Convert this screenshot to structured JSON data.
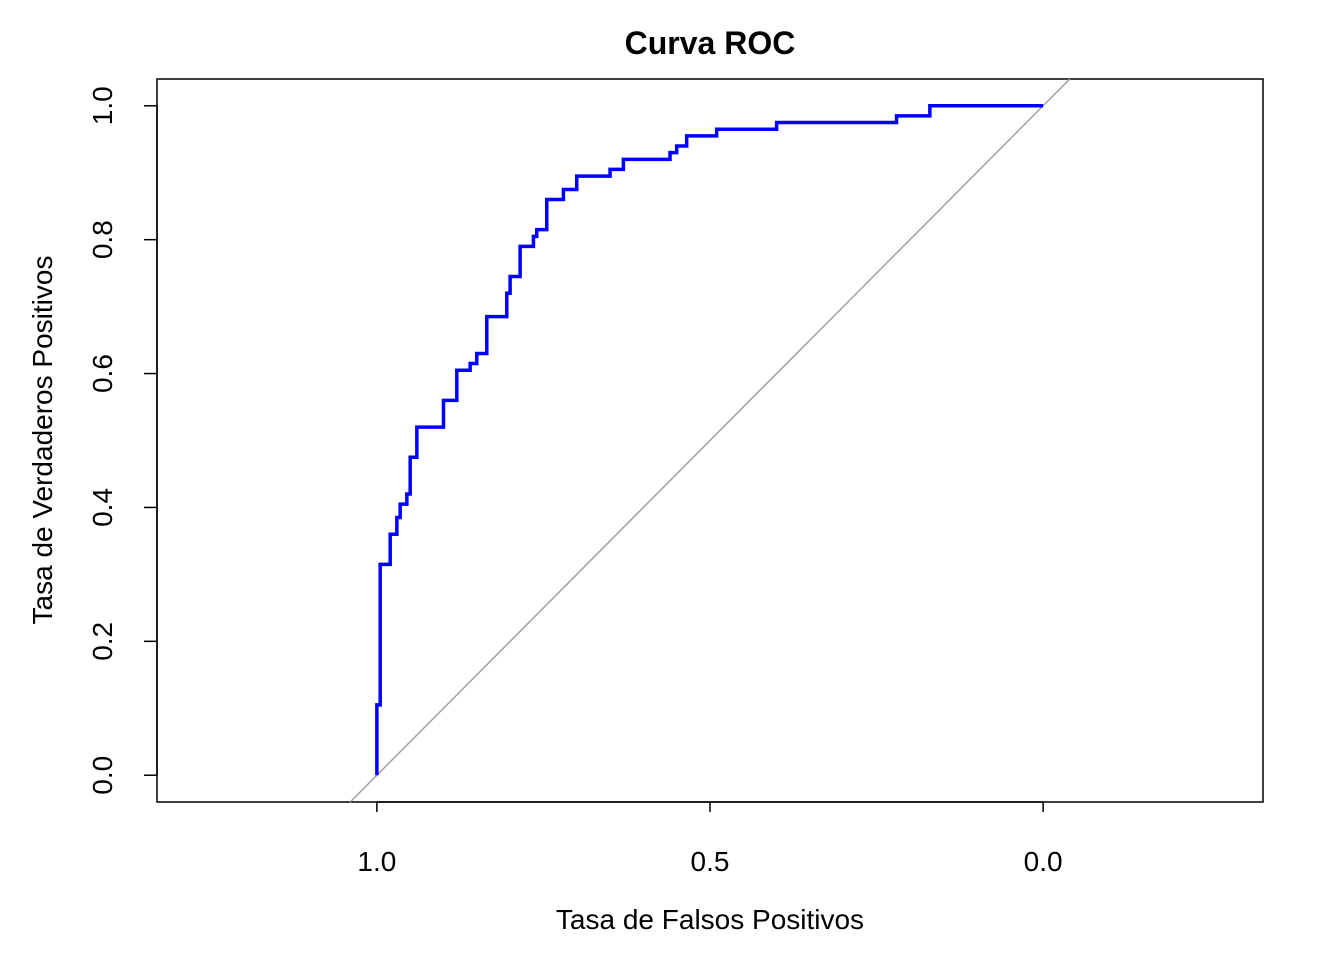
{
  "chart_data": {
    "type": "line",
    "title": "Curva ROC",
    "xlabel": "Tasa de Falsos Positivos",
    "ylabel": "Tasa de Verdaderos Positivos",
    "x_reversed": true,
    "xlim": [
      1.33,
      -0.33
    ],
    "ylim": [
      -0.04,
      1.04
    ],
    "x_ticks": [
      1.0,
      0.5,
      0.0
    ],
    "x_tick_labels": [
      "1.0",
      "0.5",
      "0.0"
    ],
    "y_ticks": [
      0.0,
      0.2,
      0.4,
      0.6,
      0.8,
      1.0
    ],
    "y_tick_labels": [
      "0.0",
      "0.2",
      "0.4",
      "0.6",
      "0.8",
      "1.0"
    ],
    "grid": false,
    "colors": {
      "roc": "#0000ff",
      "diagonal": "#a0a0a0"
    },
    "diagonal": {
      "x": [
        1.04,
        -0.04
      ],
      "y": [
        -0.04,
        1.04
      ]
    },
    "series": [
      {
        "x": [
          1.0,
          1.0,
          0.995,
          0.995,
          0.98,
          0.98,
          0.97,
          0.97,
          0.965,
          0.965,
          0.955,
          0.955,
          0.95,
          0.95,
          0.94,
          0.94,
          0.9,
          0.9,
          0.88,
          0.88,
          0.86,
          0.86,
          0.85,
          0.85,
          0.835,
          0.835,
          0.805,
          0.805,
          0.8,
          0.8,
          0.785,
          0.785,
          0.765,
          0.765,
          0.76,
          0.76,
          0.745,
          0.745,
          0.72,
          0.72,
          0.7,
          0.7,
          0.65,
          0.65,
          0.63,
          0.63,
          0.56,
          0.56,
          0.55,
          0.55,
          0.535,
          0.535,
          0.49,
          0.49,
          0.4,
          0.4,
          0.22,
          0.22,
          0.17,
          0.17,
          0.01,
          0.01,
          0.005,
          0.005,
          0.0
        ],
        "y": [
          0.0,
          0.105,
          0.105,
          0.315,
          0.315,
          0.36,
          0.36,
          0.385,
          0.385,
          0.405,
          0.405,
          0.42,
          0.42,
          0.475,
          0.475,
          0.52,
          0.52,
          0.56,
          0.56,
          0.605,
          0.605,
          0.615,
          0.615,
          0.63,
          0.63,
          0.685,
          0.685,
          0.72,
          0.72,
          0.745,
          0.745,
          0.79,
          0.79,
          0.805,
          0.805,
          0.815,
          0.815,
          0.86,
          0.86,
          0.875,
          0.875,
          0.895,
          0.895,
          0.905,
          0.905,
          0.92,
          0.92,
          0.93,
          0.93,
          0.94,
          0.94,
          0.955,
          0.955,
          0.965,
          0.965,
          0.975,
          0.975,
          0.985,
          0.985,
          1.0,
          1.0,
          1.0,
          1.0,
          1.0,
          1.0
        ]
      }
    ]
  }
}
